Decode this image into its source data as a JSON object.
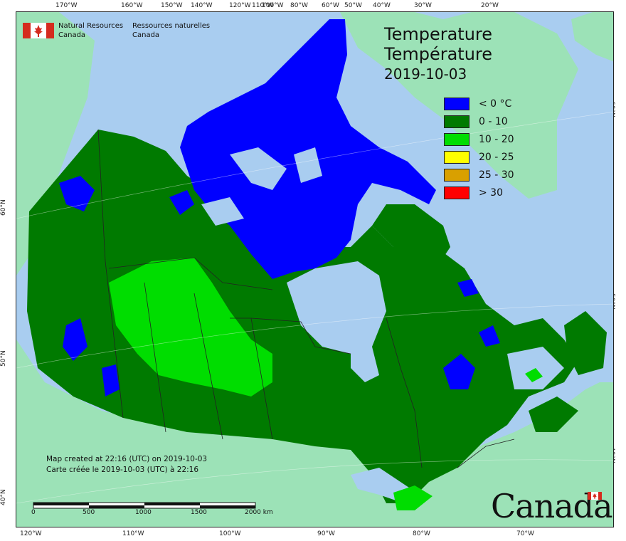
{
  "agency": {
    "name_en": [
      "Natural Resources",
      "Canada"
    ],
    "name_fr": [
      "Ressources naturelles",
      "Canada"
    ]
  },
  "title": {
    "line1": "Temperature",
    "line2": "Température",
    "date": "2019-10-03"
  },
  "legend": [
    {
      "label": "< 0 °C",
      "color": "#0000ff"
    },
    {
      "label": "0 - 10",
      "color": "#007a00"
    },
    {
      "label": "10 - 20",
      "color": "#00dd00"
    },
    {
      "label": "20 - 25",
      "color": "#ffff00"
    },
    {
      "label": "25 - 30",
      "color": "#d9a000"
    },
    {
      "label": "> 30",
      "color": "#ff0000"
    }
  ],
  "credits": {
    "en": "Map created at 22:16 (UTC) on 2019-10-03",
    "fr": "Carte créée le 2019-10-03 (UTC) à 22:16"
  },
  "scale": {
    "labels": [
      "0",
      "500",
      "1000",
      "1500",
      "2000 km"
    ]
  },
  "graticule": {
    "top": [
      "170°W",
      "160°W",
      "150°W",
      "140°W",
      "120°W",
      "110°W",
      "100°W",
      "80°W",
      "60°W",
      "50°W",
      "40°W",
      "30°W",
      "20°W"
    ],
    "bottom": [
      "120°W",
      "110°W",
      "100°W",
      "90°W",
      "80°W",
      "70°W"
    ],
    "left": [
      "60°N",
      "50°N",
      "40°N"
    ],
    "right": [
      "60°N",
      "50°N",
      "40°N"
    ]
  },
  "wordmark": "Canada",
  "colors": {
    "ocean": "#a9cdf0",
    "land_outside": "#9ce2b7",
    "boundary": "#222222"
  }
}
